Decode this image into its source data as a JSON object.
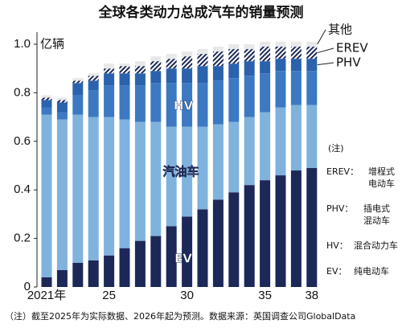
{
  "chart_data": {
    "type": "bar",
    "stacked": true,
    "title": "全球各类动力总成汽车的销量预测",
    "y_label": "亿辆",
    "categories": [
      "2021年",
      null,
      null,
      null,
      "25",
      null,
      null,
      null,
      null,
      "30",
      null,
      null,
      null,
      null,
      "35",
      null,
      null,
      "38"
    ],
    "ylim": [
      0,
      1.05
    ],
    "yticks": [
      0,
      0.2,
      0.4,
      0.6,
      0.8,
      {
        "value": 1,
        "label": "1.0"
      }
    ],
    "series": [
      {
        "name": "EV",
        "color": "#1c2857",
        "values": [
          0.04,
          0.07,
          0.1,
          0.11,
          0.13,
          0.16,
          0.19,
          0.21,
          0.25,
          0.29,
          0.32,
          0.36,
          0.39,
          0.42,
          0.44,
          0.46,
          0.48,
          0.49
        ]
      },
      {
        "name": "汽油车",
        "color": "#80b2de",
        "values": [
          0.67,
          0.62,
          0.61,
          0.59,
          0.57,
          0.53,
          0.49,
          0.47,
          0.41,
          0.37,
          0.34,
          0.31,
          0.29,
          0.28,
          0.28,
          0.28,
          0.27,
          0.26
        ]
      },
      {
        "name": "HV",
        "color": "#3c79c2",
        "values": [
          0.03,
          0.03,
          0.08,
          0.11,
          0.13,
          0.14,
          0.15,
          0.16,
          0.18,
          0.18,
          0.18,
          0.18,
          0.18,
          0.17,
          0.16,
          0.15,
          0.14,
          0.14
        ]
      },
      {
        "name": "PHV",
        "color": "#2b62ad",
        "values": [
          0.03,
          0.04,
          0.05,
          0.04,
          0.05,
          0.05,
          0.05,
          0.05,
          0.06,
          0.06,
          0.07,
          0.06,
          0.06,
          0.06,
          0.05,
          0.05,
          0.05,
          0.05
        ]
      },
      {
        "name": "EREV",
        "color": "#1c2857",
        "pattern": "hatch",
        "values": [
          0.01,
          0.01,
          0.01,
          0.02,
          0.02,
          0.03,
          0.03,
          0.04,
          0.04,
          0.05,
          0.05,
          0.06,
          0.06,
          0.05,
          0.06,
          0.05,
          0.05,
          0.05
        ]
      },
      {
        "name": "其他",
        "color": "#e8e8e8",
        "values": [
          0.01,
          0.01,
          0.01,
          0.01,
          0.02,
          0.01,
          0.02,
          0.02,
          0.02,
          0.02,
          0.02,
          0.02,
          0.02,
          0.02,
          0.02,
          0.02,
          0.02,
          0.02
        ]
      }
    ],
    "notes_header": "(注)",
    "notes": [
      {
        "key": "EREV：",
        "lines": [
          "增程式",
          "电动车"
        ]
      },
      {
        "key": "PHV：",
        "lines": [
          "插电式",
          "混动车"
        ]
      },
      {
        "key": "HV：",
        "lines": [
          "混合动力车"
        ]
      },
      {
        "key": "EV：",
        "lines": [
          "纯电动车"
        ]
      }
    ],
    "footnote": "（注）截至2025年为实际数据、2026年起为预测。数据来源：英国调查公司GlobalData"
  }
}
